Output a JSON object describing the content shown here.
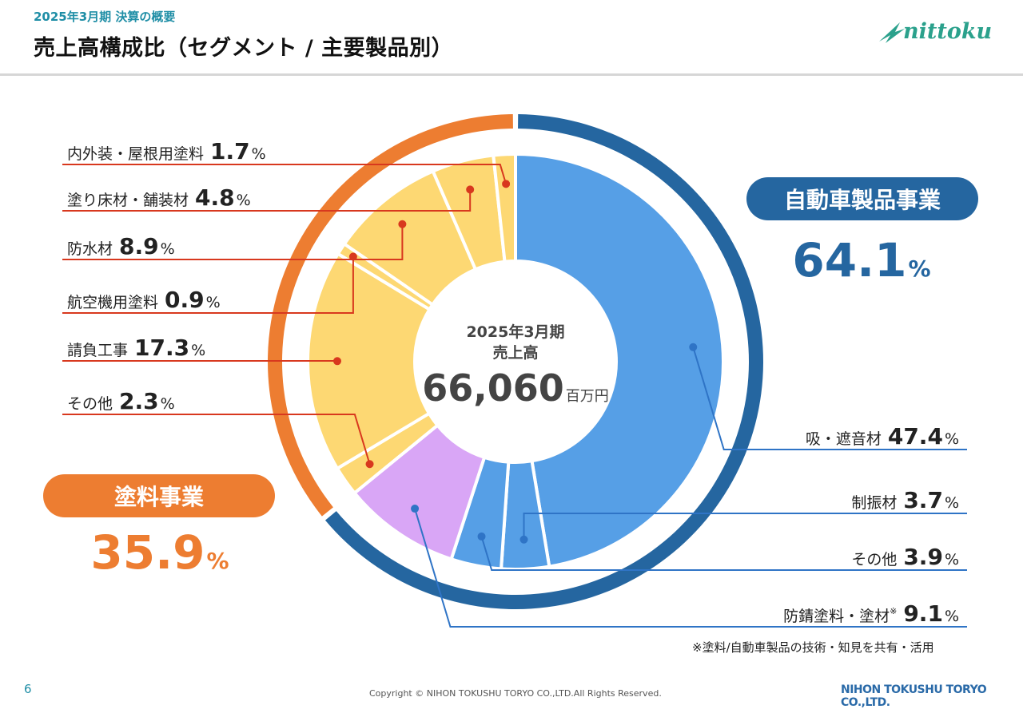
{
  "header": {
    "subtitle": "2025年3月期 決算の概要",
    "title": "売上高構成比（セグメント / 主要製品別）",
    "logo_text": "nittoku"
  },
  "center": {
    "period": "2025年3月期",
    "label": "売上高",
    "value": "66,060",
    "unit": "百万円"
  },
  "segments": {
    "automotive": {
      "name": "自動車製品事業",
      "value": "64.1",
      "unit": "%",
      "color": "#2566a0"
    },
    "paint": {
      "name": "塗料事業",
      "value": "35.9",
      "unit": "%",
      "color": "#ed7d31"
    }
  },
  "chart_data": {
    "type": "pie",
    "subtype": "donut",
    "start": "12 o'clock",
    "direction": "clockwise",
    "outer_ring": [
      {
        "name": "自動車製品事業",
        "value": 64.1,
        "color": "#2566a0"
      },
      {
        "name": "塗料事業",
        "value": 35.9,
        "color": "#ed7d31"
      }
    ],
    "slices": [
      {
        "name": "吸・遮音材",
        "value": 47.4,
        "segment": "automotive",
        "color": "#569fe6",
        "side": "right"
      },
      {
        "name": "制振材",
        "value": 3.7,
        "segment": "automotive",
        "color": "#569fe6",
        "side": "right"
      },
      {
        "name": "その他",
        "value": 3.9,
        "segment": "automotive",
        "color": "#569fe6",
        "side": "right"
      },
      {
        "name": "防錆塗料・塗材",
        "value": 9.1,
        "segment": "both",
        "color": "#d9a6f6",
        "side": "right",
        "note_mark": "※"
      },
      {
        "name": "その他",
        "value": 2.3,
        "segment": "paint",
        "color": "#fdd873",
        "side": "left"
      },
      {
        "name": "請負工事",
        "value": 17.3,
        "segment": "paint",
        "color": "#fdd873",
        "side": "left"
      },
      {
        "name": "航空機用塗料",
        "value": 0.9,
        "segment": "paint",
        "color": "#fdd873",
        "side": "left"
      },
      {
        "name": "防水材",
        "value": 8.9,
        "segment": "paint",
        "color": "#fdd873",
        "side": "left"
      },
      {
        "name": "塗り床材・舗装材",
        "value": 4.8,
        "segment": "paint",
        "color": "#fdd873",
        "side": "left"
      },
      {
        "name": "内外装・屋根用塗料",
        "value": 1.7,
        "segment": "paint",
        "color": "#fdd873",
        "side": "left"
      }
    ],
    "value_unit": "%"
  },
  "footnote": "※塗料/自動車製品の技術・知見を共有・活用",
  "footer": {
    "page": "6",
    "copyright": "Copyright © NIHON TOKUSHU TORYO CO.,LTD.All Rights Reserved.",
    "company": "NIHON TOKUSHU TORYO CO.,LTD."
  },
  "colors": {
    "blue_line": "#2f74c6",
    "red_line": "#d8381e",
    "title_teal": "#1f8ea6"
  }
}
